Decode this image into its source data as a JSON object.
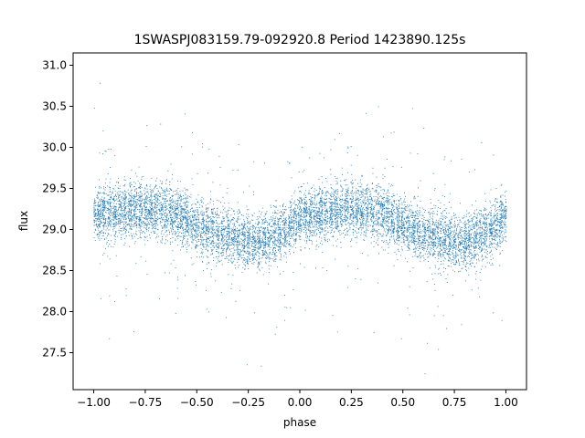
{
  "chart_data": {
    "type": "scatter",
    "title": "1SWASPJ083159.79-092920.8 Period 1423890.125s",
    "xlabel": "phase",
    "ylabel": "flux",
    "xlim": [
      -1.1,
      1.1
    ],
    "ylim": [
      27.05,
      31.15
    ],
    "xticks": [
      -1.0,
      -0.75,
      -0.5,
      -0.25,
      0.0,
      0.25,
      0.5,
      0.75,
      1.0
    ],
    "xtick_labels": [
      "−1.00",
      "−0.75",
      "−0.50",
      "−0.25",
      "0.00",
      "0.25",
      "0.50",
      "0.75",
      "1.00"
    ],
    "yticks": [
      27.5,
      28.0,
      28.5,
      29.0,
      29.5,
      30.0,
      30.5,
      31.0
    ],
    "ytick_labels": [
      "27.5",
      "28.0",
      "28.5",
      "29.0",
      "29.5",
      "30.0",
      "30.5",
      "31.0"
    ],
    "grid": false,
    "marker_color": "#1f77b4",
    "series": [
      {
        "phase": [
          -1.0,
          -0.9,
          -0.8,
          -0.7,
          -0.6,
          -0.5,
          -0.4,
          -0.3,
          -0.2,
          -0.1,
          0.0,
          0.1,
          0.2,
          0.3,
          0.4,
          0.5,
          0.6,
          0.7,
          0.8,
          0.9,
          1.0
        ],
        "flux_center": [
          29.2,
          29.2,
          29.25,
          29.25,
          29.2,
          29.05,
          28.95,
          28.9,
          28.85,
          28.95,
          29.15,
          29.2,
          29.25,
          29.25,
          29.2,
          29.05,
          28.95,
          28.9,
          28.85,
          28.95,
          29.15
        ],
        "flux_spread": 0.28,
        "flux_min": 27.25,
        "flux_max": 31.05
      }
    ]
  }
}
